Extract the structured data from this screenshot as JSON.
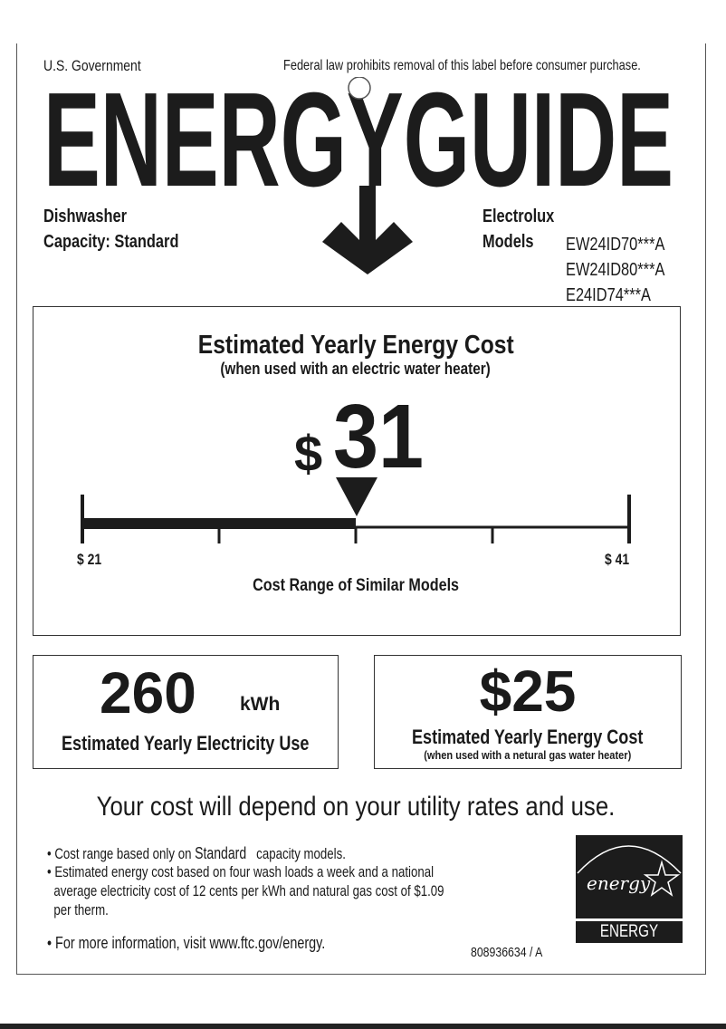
{
  "header": {
    "government": "U.S. Government",
    "notice": "Federal law prohibits removal of this label before consumer purchase.",
    "logo_text": "ENERGYGUIDE"
  },
  "product": {
    "type": "Dishwasher",
    "capacity": "Capacity: Standard",
    "brand": "Electrolux",
    "models_label": "Models",
    "models": [
      "EW24ID70***A",
      "EW24ID80***A",
      "E24ID74***A"
    ]
  },
  "cost": {
    "title": "Estimated Yearly Energy Cost",
    "subtitle": "(when used with an electric water heater)",
    "currency": "$",
    "value": "31",
    "range_min_label": "$ 21",
    "range_max_label": "$ 41",
    "range_min": 21,
    "range_max": 41,
    "range_value": 31,
    "range_caption": "Cost Range of Similar Models"
  },
  "electricity": {
    "value": "260",
    "unit": "kWh",
    "label": "Estimated Yearly Electricity Use"
  },
  "gas": {
    "value": "$25",
    "label": "Estimated Yearly Energy Cost",
    "sublabel": "(when used with a netural gas water heater)"
  },
  "footer": {
    "headline": "Your cost will depend on your utility rates and use.",
    "bullet1_pre": "• Cost range based only on",
    "bullet1_bold": "Standard",
    "bullet1_post": "capacity models.",
    "bullet2_line1": "• Estimated energy cost based on four wash loads a week and a national",
    "bullet2_line2": "average electricity cost of 12 cents per kWh and natural gas cost of $1.09",
    "bullet2_line3": "per therm.",
    "bullet3": "• For more information, visit www.ftc.gov/energy.",
    "code": "808936634 / A",
    "energy_star_script": "energy",
    "energy_star_label": "ENERGY STAR"
  }
}
